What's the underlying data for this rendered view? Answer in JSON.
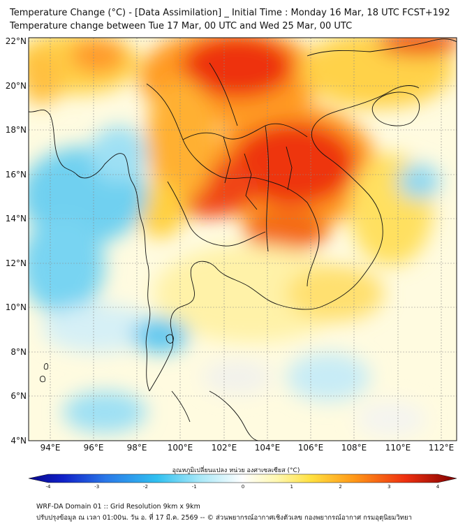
{
  "header": {
    "title_line1": "Temperature Change (°C) - [Data Assimilation] _ Initial Time : Monday 16 Mar, 18 UTC FCST+192",
    "title_line2": "Temperature change between Tue 17 Mar, 00 UTC and Wed 25 Mar, 00 UTC"
  },
  "map": {
    "lat_labels": [
      "22°N",
      "20°N",
      "18°N",
      "16°N",
      "14°N",
      "12°N",
      "10°N",
      "8°N",
      "6°N",
      "4°N"
    ],
    "lon_labels": [
      "94°E",
      "96°E",
      "98°E",
      "100°E",
      "102°E",
      "104°E",
      "106°E",
      "108°E",
      "110°E",
      "112°E"
    ],
    "lat_range": [
      4,
      22.2
    ],
    "lon_range": [
      93,
      112.8
    ]
  },
  "colorbar": {
    "label": "อุณหภูมิเปลี่ยนแปลง หน่วย องศาเซลเซียส (°C)",
    "ticks": [
      "-4",
      "-3",
      "-2",
      "-1",
      "0",
      "1",
      "2",
      "3",
      "4"
    ],
    "range": [
      -4,
      4
    ]
  },
  "footer": {
    "line1": "WRF-DA Domain 01 :: Grid Resolution 9km x 9km",
    "line2": "ปรับปรุงข้อมูล ณ เวลา 01:00น. วัน อ. ที่ 17 มี.ค. 2569 -- © ส่วนพยากรณ์อากาศเชิงตัวเลข กองพยากรณ์อากาศ กรมอุตุนิยมวิทยา"
  },
  "colors": {
    "land_border": "#111111",
    "grid_line": "#8a8a8a",
    "hot": "#e8200a",
    "warm": "#ffcc20",
    "neutral": "#f6f6f2",
    "cool": "#54c8f0"
  }
}
